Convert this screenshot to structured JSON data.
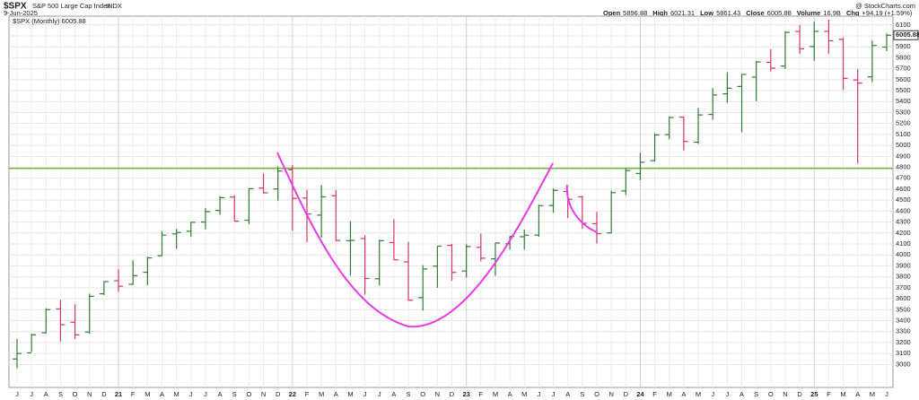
{
  "chart_data": {
    "type": "ohlc",
    "title": "$SPX",
    "subtitle": "S&P 500 Large Cap Index",
    "exchange": "INDX",
    "date": "9-Jun-2025",
    "credit": "@ StockCharts.com",
    "quote": [
      {
        "label": "Open",
        "value": "5896.88"
      },
      {
        "label": "High",
        "value": "6021.31"
      },
      {
        "label": "Low",
        "value": "5861.43"
      },
      {
        "label": "Close",
        "value": "6005.88"
      },
      {
        "label": "Volume",
        "value": "16.9B"
      },
      {
        "label": "Chg",
        "value": "+94.19 (+1.59%)"
      }
    ],
    "legend": "$SPX (Monthly) 6005.88",
    "last_label": "6005.88",
    "last_value": 6005.88,
    "up_color": "#2e7d32",
    "down_color": "#d6336c",
    "grid": true,
    "reference_line": 4790,
    "reference_color": "#7cb342",
    "categories": [
      "J",
      "J",
      "A",
      "S",
      "O",
      "N",
      "D",
      "21",
      "F",
      "M",
      "A",
      "M",
      "J",
      "J",
      "A",
      "S",
      "O",
      "N",
      "D",
      "22",
      "F",
      "M",
      "A",
      "M",
      "J",
      "J",
      "A",
      "S",
      "O",
      "N",
      "D",
      "23",
      "F",
      "M",
      "A",
      "M",
      "J",
      "J",
      "A",
      "S",
      "O",
      "N",
      "D",
      "24",
      "F",
      "M",
      "A",
      "M",
      "J",
      "J",
      "A",
      "S",
      "O",
      "N",
      "D",
      "25",
      "F",
      "M",
      "A",
      "M",
      "J"
    ],
    "open": [
      3050,
      3106,
      3289,
      3507,
      3385,
      3296,
      3645,
      3764,
      3732,
      3842,
      3992,
      4191,
      4216,
      4300,
      4406,
      4528,
      4317,
      4610,
      4602,
      4778,
      4519,
      4363,
      4540,
      4130,
      4150,
      3782,
      4113,
      3937,
      3610,
      3898,
      4087,
      3853,
      4070,
      3964,
      4102,
      4166,
      4181,
      4451,
      4579,
      4530,
      4285,
      4201,
      4584,
      4743,
      4861,
      5098,
      5258,
      5029,
      5283,
      5471,
      5538,
      5624,
      5758,
      5724,
      6040,
      5903,
      6041,
      5968,
      5597,
      5626,
      5897
    ],
    "high": [
      3233,
      3280,
      3514,
      3588,
      3550,
      3646,
      3760,
      3870,
      3950,
      3983,
      4218,
      4238,
      4302,
      4429,
      4538,
      4546,
      4608,
      4744,
      4808,
      4819,
      4595,
      4637,
      4593,
      4307,
      4178,
      4140,
      4325,
      4119,
      3906,
      4080,
      4101,
      4095,
      4195,
      4110,
      4170,
      4231,
      4458,
      4607,
      4584,
      4541,
      4393,
      4588,
      4794,
      4932,
      5111,
      5265,
      5264,
      5342,
      5523,
      5669,
      5651,
      5768,
      5878,
      6044,
      6100,
      6129,
      6147,
      5986,
      5696,
      5958,
      6021
    ],
    "low": [
      2966,
      3115,
      3284,
      3209,
      3233,
      3279,
      3633,
      3663,
      3725,
      3723,
      3992,
      4056,
      4164,
      4233,
      4367,
      4306,
      4279,
      4561,
      4495,
      4223,
      4115,
      4157,
      4125,
      3811,
      3637,
      3721,
      3955,
      3584,
      3492,
      3699,
      3764,
      3794,
      3943,
      3809,
      4049,
      4048,
      4167,
      4385,
      4335,
      4238,
      4104,
      4197,
      4547,
      4682,
      4853,
      5057,
      4954,
      5012,
      5234,
      5390,
      5120,
      5403,
      5675,
      5697,
      5833,
      5773,
      5837,
      5505,
      4835,
      5578,
      5861
    ],
    "close": [
      3100,
      3271,
      3500,
      3363,
      3270,
      3622,
      3756,
      3714,
      3811,
      3973,
      4181,
      4204,
      4298,
      4395,
      4523,
      4308,
      4605,
      4567,
      4766,
      4516,
      4374,
      4530,
      4132,
      4132,
      3785,
      4130,
      3955,
      3586,
      3872,
      4080,
      3840,
      4077,
      3970,
      4109,
      4169,
      4180,
      4450,
      4589,
      4508,
      4288,
      4194,
      4568,
      4770,
      4846,
      5096,
      5254,
      5036,
      5278,
      5460,
      5522,
      5648,
      5762,
      5705,
      6032,
      5882,
      6041,
      5955,
      5612,
      5569,
      5912,
      6006
    ],
    "ylim": [
      2790,
      6180
    ],
    "yticks": [
      3000,
      3100,
      3200,
      3300,
      3400,
      3500,
      3600,
      3700,
      3800,
      3900,
      4000,
      4100,
      4200,
      4300,
      4400,
      4500,
      4600,
      4700,
      4800,
      4900,
      5000,
      5100,
      5200,
      5300,
      5400,
      5500,
      5600,
      5700,
      5800,
      5900,
      6000,
      6100
    ]
  }
}
